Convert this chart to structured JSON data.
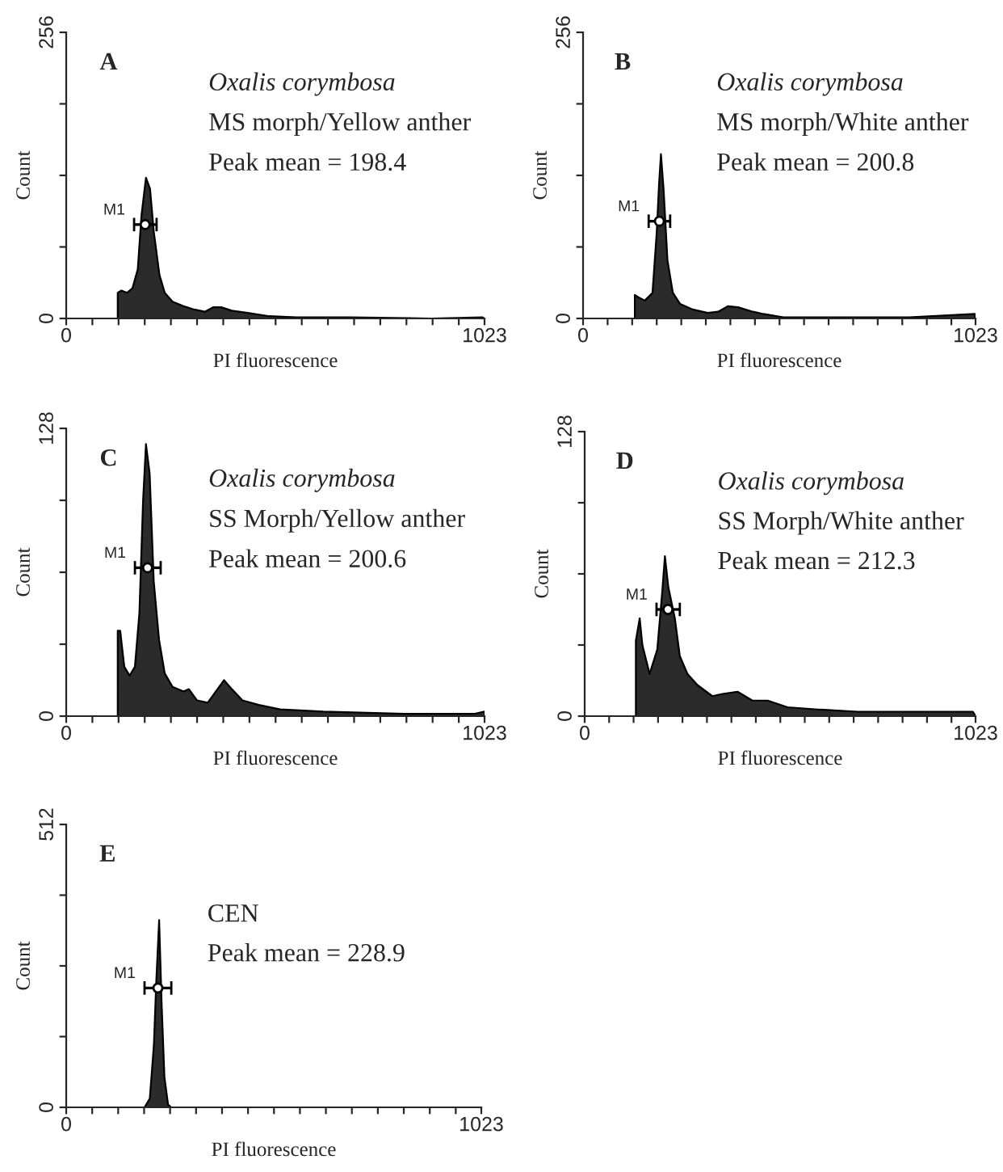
{
  "chart_data": [
    {
      "type": "area",
      "title": "A",
      "xlabel": "PI fluorescence",
      "ylabel": "Count",
      "xlim": [
        0,
        1023
      ],
      "ylim": [
        0,
        256
      ],
      "xticks": [
        0,
        {
          "value": 64,
          "label": null
        },
        {
          "value": 128,
          "label": null
        },
        {
          "value": 192,
          "label": null
        },
        {
          "value": 256,
          "label": null
        },
        {
          "value": 320,
          "label": null
        },
        {
          "value": 384,
          "label": null
        },
        {
          "value": 448,
          "label": null
        },
        {
          "value": 512,
          "label": null
        },
        {
          "value": 576,
          "label": null
        },
        {
          "value": 640,
          "label": null
        },
        {
          "value": 704,
          "label": null
        },
        {
          "value": 768,
          "label": null
        },
        {
          "value": 832,
          "label": null
        },
        {
          "value": 896,
          "label": null
        },
        {
          "value": 960,
          "label": null
        },
        1023
      ],
      "yticks": [
        0,
        {
          "value": 64,
          "label": null
        },
        {
          "value": 128,
          "label": null
        },
        {
          "value": 192,
          "label": null
        },
        256
      ],
      "grid": false,
      "annotations": [
        "Oxalis corymbosa",
        "MS morph/Yellow anther",
        "Peak mean = 198.4"
      ],
      "series": [
        {
          "color": "#2b2b2b",
          "x": [
            126,
            126,
            135,
            149,
            162,
            175,
            184,
            195,
            205,
            214,
            228,
            241,
            260,
            287,
            313,
            339,
            359,
            379,
            405,
            444,
            497,
            563,
            694,
            892,
            1017,
            1023
          ],
          "values": [
            0,
            23,
            25,
            23,
            27,
            44,
            92,
            126,
            116,
            78,
            39,
            23,
            15,
            11,
            8,
            6,
            10,
            10,
            7,
            5,
            2,
            1,
            1,
            0,
            1,
            0
          ]
        },
        {
          "type": "scatter",
          "name": "M1",
          "color": "#000000",
          "x": [
            193
          ],
          "values": [
            84
          ],
          "xerrors": [
            [
              166,
              221
            ]
          ]
        }
      ]
    },
    {
      "type": "area",
      "title": "B",
      "xlabel": "PI fluorescence",
      "ylabel": "Count",
      "xlim": [
        0,
        1023
      ],
      "ylim": [
        0,
        256
      ],
      "xticks": [
        0,
        {
          "value": 64,
          "label": null
        },
        {
          "value": 128,
          "label": null
        },
        {
          "value": 192,
          "label": null
        },
        {
          "value": 256,
          "label": null
        },
        {
          "value": 320,
          "label": null
        },
        {
          "value": 384,
          "label": null
        },
        {
          "value": 448,
          "label": null
        },
        {
          "value": 512,
          "label": null
        },
        {
          "value": 576,
          "label": null
        },
        {
          "value": 640,
          "label": null
        },
        {
          "value": 704,
          "label": null
        },
        {
          "value": 768,
          "label": null
        },
        {
          "value": 832,
          "label": null
        },
        {
          "value": 896,
          "label": null
        },
        {
          "value": 960,
          "label": null
        },
        1023
      ],
      "yticks": [
        0,
        {
          "value": 64,
          "label": null
        },
        {
          "value": 128,
          "label": null
        },
        {
          "value": 192,
          "label": null
        },
        256
      ],
      "grid": false,
      "annotations": [
        "Oxalis corymbosa",
        "MS morph/White anther",
        "Peak mean = 200.8"
      ],
      "series": [
        {
          "color": "#2b2b2b",
          "x": [
            135,
            135,
            144,
            161,
            181,
            192,
            198,
            203,
            210,
            220,
            234,
            253,
            286,
            325,
            352,
            378,
            404,
            443,
            470,
            522,
            653,
            850,
            1021,
            1023
          ],
          "values": [
            0,
            21,
            19,
            16,
            23,
            77,
            120,
            147,
            115,
            52,
            23,
            13,
            8,
            5,
            6,
            11,
            10,
            6,
            4,
            1,
            1,
            1,
            4,
            0
          ]
        },
        {
          "type": "scatter",
          "name": "M1",
          "color": "#000000",
          "x": [
            199
          ],
          "values": [
            87
          ],
          "xerrors": [
            [
              171,
              227
            ]
          ]
        }
      ]
    },
    {
      "type": "area",
      "title": "C",
      "xlabel": "PI fluorescence",
      "ylabel": "Count",
      "xlim": [
        0,
        1023
      ],
      "ylim": [
        0,
        128
      ],
      "xticks": [
        0,
        {
          "value": 64,
          "label": null
        },
        {
          "value": 128,
          "label": null
        },
        {
          "value": 192,
          "label": null
        },
        {
          "value": 256,
          "label": null
        },
        {
          "value": 320,
          "label": null
        },
        {
          "value": 384,
          "label": null
        },
        {
          "value": 448,
          "label": null
        },
        {
          "value": 512,
          "label": null
        },
        {
          "value": 576,
          "label": null
        },
        {
          "value": 640,
          "label": null
        },
        {
          "value": 704,
          "label": null
        },
        {
          "value": 768,
          "label": null
        },
        {
          "value": 832,
          "label": null
        },
        {
          "value": 896,
          "label": null
        },
        {
          "value": 960,
          "label": null
        },
        1023
      ],
      "yticks": [
        0,
        {
          "value": 32,
          "label": null
        },
        {
          "value": 64,
          "label": null
        },
        {
          "value": 96,
          "label": null
        },
        128
      ],
      "grid": false,
      "annotations": [
        "Oxalis corymbosa",
        "SS Morph/Yellow anther",
        "Peak mean = 200.6"
      ],
      "series": [
        {
          "color": "#2b2b2b",
          "x": [
            126,
            126,
            132,
            142,
            155,
            168,
            179,
            188,
            195,
            204,
            214,
            227,
            241,
            260,
            287,
            300,
            320,
            346,
            366,
            386,
            405,
            431,
            471,
            523,
            629,
            826,
            997,
            1023
          ],
          "values": [
            0,
            38,
            38,
            22,
            18,
            22,
            46,
            96,
            121,
            108,
            60,
            34,
            19,
            13,
            11,
            12,
            7,
            6,
            11,
            16,
            12,
            7,
            5,
            3,
            2,
            1,
            1,
            2
          ]
        },
        {
          "type": "scatter",
          "name": "M1",
          "color": "#000000",
          "x": [
            199
          ],
          "values": [
            66
          ],
          "xerrors": [
            [
              168,
              231
            ]
          ]
        }
      ]
    },
    {
      "type": "area",
      "title": "D",
      "xlabel": "PI fluorescence",
      "ylabel": "Count",
      "xlim": [
        0,
        1023
      ],
      "ylim": [
        0,
        128
      ],
      "xticks": [
        0,
        {
          "value": 64,
          "label": null
        },
        {
          "value": 128,
          "label": null
        },
        {
          "value": 192,
          "label": null
        },
        {
          "value": 256,
          "label": null
        },
        {
          "value": 320,
          "label": null
        },
        {
          "value": 384,
          "label": null
        },
        {
          "value": 448,
          "label": null
        },
        {
          "value": 512,
          "label": null
        },
        {
          "value": 576,
          "label": null
        },
        {
          "value": 640,
          "label": null
        },
        {
          "value": 704,
          "label": null
        },
        {
          "value": 768,
          "label": null
        },
        {
          "value": 832,
          "label": null
        },
        {
          "value": 896,
          "label": null
        },
        {
          "value": 960,
          "label": null
        },
        1023
      ],
      "yticks": [
        0,
        {
          "value": 32,
          "label": null
        },
        {
          "value": 64,
          "label": null
        },
        {
          "value": 96,
          "label": null
        },
        128
      ],
      "grid": false,
      "annotations": [
        "Oxalis corymbosa",
        "SS Morph/White anther",
        "Peak mean = 212.3"
      ],
      "series": [
        {
          "color": "#2b2b2b",
          "x": [
            134,
            134,
            144,
            151,
            170,
            190,
            203,
            210,
            219,
            236,
            249,
            269,
            295,
            334,
            361,
            400,
            439,
            479,
            531,
            610,
            715,
            846,
            1016,
            1023
          ],
          "values": [
            0,
            34,
            44,
            32,
            19,
            30,
            56,
            72,
            58,
            44,
            27,
            19,
            14,
            9,
            10,
            11,
            7,
            7,
            4,
            3,
            2,
            2,
            2,
            0
          ]
        },
        {
          "type": "scatter",
          "name": "M1",
          "color": "#000000",
          "x": [
            218
          ],
          "values": [
            48
          ],
          "xerrors": [
            [
              188,
              249
            ]
          ]
        }
      ]
    },
    {
      "type": "area",
      "title": "E",
      "xlabel": "PI fluorescence",
      "ylabel": "Count",
      "xlim": [
        0,
        1023
      ],
      "ylim": [
        0,
        512
      ],
      "xticks": [
        0,
        {
          "value": 64,
          "label": null
        },
        {
          "value": 128,
          "label": null
        },
        {
          "value": 192,
          "label": null
        },
        {
          "value": 256,
          "label": null
        },
        {
          "value": 320,
          "label": null
        },
        {
          "value": 384,
          "label": null
        },
        {
          "value": 448,
          "label": null
        },
        {
          "value": 512,
          "label": null
        },
        {
          "value": 576,
          "label": null
        },
        {
          "value": 640,
          "label": null
        },
        {
          "value": 704,
          "label": null
        },
        {
          "value": 768,
          "label": null
        },
        {
          "value": 832,
          "label": null
        },
        {
          "value": 896,
          "label": null
        },
        {
          "value": 960,
          "label": null
        },
        1023
      ],
      "yticks": [
        0,
        {
          "value": 128,
          "label": null
        },
        {
          "value": 256,
          "label": null
        },
        {
          "value": 384,
          "label": null
        },
        512
      ],
      "grid": false,
      "annotations": [
        "CEN",
        "Peak mean = 228.9"
      ],
      "series": [
        {
          "color": "#2b2b2b",
          "x": [
            193,
            206,
            216,
            222,
            229,
            235,
            242,
            251,
            259
          ],
          "values": [
            0,
            16,
            112,
            228,
            339,
            190,
            55,
            5,
            0
          ]
        },
        {
          "type": "scatter",
          "name": "M1",
          "color": "#000000",
          "x": [
            226
          ],
          "values": [
            216
          ],
          "xerrors": [
            [
              193,
              259
            ]
          ]
        }
      ]
    }
  ]
}
